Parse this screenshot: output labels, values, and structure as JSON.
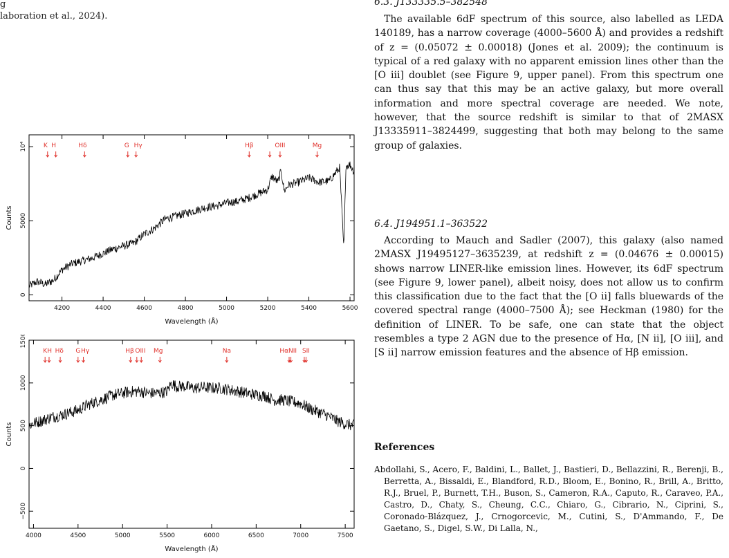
{
  "left_caption": {
    "line1": "g",
    "line2": "laboration et al., 2024)."
  },
  "right_top_header": "6.3.  J133335.5–382548",
  "section_6_3_paragraph": "The available 6dF spectrum of this source, also labelled as LEDA 140189, has a narrow coverage (4000–5600 Å) and provides a redshift of z = (0.05072 ± 0.00018) (Jones et al. 2009); the continuum is typical of a red galaxy with no apparent emission lines other than the [O iii] doublet (see Figure 9, upper panel). From this spectrum one can thus say that this may be an active galaxy, but more overall information and more spectral coverage are needed. We note, however, that the source redshift is similar to that of 2MASX J13335911–3824499, suggesting that both may belong to the same group of galaxies.",
  "section_6_4_title": "6.4.  J194951.1–363522",
  "section_6_4_paragraph": "According to Mauch and Sadler (2007), this galaxy (also named 2MASX J19495127–3635239, at redshift z = (0.04676 ± 0.00015) shows narrow LINER-like emission lines. However, its 6dF spectrum (see Figure 9, lower panel), albeit noisy, does not allow us to confirm this classification due to the fact that the [O ii] falls bluewards of the covered spectral range (4000–7500 Å); see Heckman (1980) for the definition of LINER. To be safe, one can state that the object resembles a type 2 AGN due to the presence of Hα, [N ii], [O iii], and [S ii] narrow emission features and the absence of Hβ emission.",
  "references_title": "References",
  "references_text": "Abdollahi, S., Acero, F., Baldini, L., Ballet, J., Bastieri, D., Bellazzini, R., Berenji, B., Berretta, A., Bissaldi, E., Blandford, R.D., Bloom, E., Bonino, R., Brill, A., Britto, R.J., Bruel, P., Burnett, T.H., Buson, S., Cameron, R.A., Caputo, R., Caraveo, P.A., Castro, D., Chaty, S., Cheung, C.C., Chiaro, G., Cibrario, N., Ciprini, S., Coronado-Blázquez, J., Crnogorcevic, M., Cutini, S., D'Ammando, F., De Gaetano, S., Digel, S.W., Di Lalla, N.,",
  "colors": {
    "line_marker": "#e0302a",
    "spectrum": "#000000"
  },
  "chart_data": [
    {
      "type": "line",
      "title": "",
      "xlabel": "Wavelength (Å)",
      "ylabel": "Counts",
      "xlim": [
        4040,
        5620
      ],
      "ylim": [
        -400,
        10800
      ],
      "x_ticks": [
        4200,
        4400,
        4600,
        4800,
        5000,
        5200,
        5400,
        5600
      ],
      "x_tick_labels": [
        "4200",
        "4400",
        "4600",
        "4800",
        "5000",
        "5200",
        "5400",
        "5600"
      ],
      "y_ticks": [
        0,
        5000,
        10000
      ],
      "y_tick_labels": [
        "0",
        "5000",
        "10⁴"
      ],
      "line_labels": [
        {
          "text": "K",
          "x": 4120,
          "arrows": [
            4130
          ]
        },
        {
          "text": "H",
          "x": 4160,
          "arrows": [
            4170
          ]
        },
        {
          "text": "Hδ",
          "x": 4300,
          "arrows": [
            4310
          ]
        },
        {
          "text": "G",
          "x": 4515,
          "arrows": [
            4520
          ]
        },
        {
          "text": "Hγ",
          "x": 4570,
          "arrows": [
            4560
          ]
        },
        {
          "text": "Hβ",
          "x": 5110,
          "arrows": [
            5110
          ]
        },
        {
          "text": "OIII",
          "x": 5260,
          "arrows": [
            5210,
            5260
          ]
        },
        {
          "text": "Mg",
          "x": 5440,
          "arrows": [
            5440
          ]
        }
      ],
      "series": [
        {
          "x": [
            4040,
            4080,
            4120,
            4160,
            4200,
            4250,
            4300,
            4350,
            4400,
            4450,
            4500,
            4550,
            4600,
            4650,
            4700,
            4750,
            4800,
            4850,
            4900,
            4950,
            5000,
            5050,
            5100,
            5150,
            5200,
            5220,
            5250,
            5265,
            5280,
            5300,
            5350,
            5400,
            5450,
            5500,
            5550,
            5570,
            5580,
            5600,
            5620
          ],
          "y": [
            600,
            900,
            700,
            1000,
            1700,
            2100,
            2300,
            2500,
            2800,
            3100,
            3300,
            3500,
            4100,
            4500,
            5100,
            5300,
            5500,
            5700,
            5900,
            6000,
            6200,
            6300,
            6500,
            6800,
            7100,
            8000,
            7600,
            8400,
            7000,
            7400,
            7600,
            7900,
            7600,
            7700,
            8600,
            3000,
            8700,
            8800,
            8300
          ]
        }
      ]
    },
    {
      "type": "line",
      "title": "",
      "xlabel": "Wavelength (Å)",
      "ylabel": "Counts",
      "xlim": [
        3950,
        7600
      ],
      "ylim": [
        -700,
        1500
      ],
      "x_ticks": [
        4000,
        4500,
        5000,
        5500,
        6000,
        6500,
        7000,
        7500
      ],
      "x_tick_labels": [
        "4000",
        "4500",
        "5000",
        "5500",
        "6000",
        "6500",
        "7000",
        "7500"
      ],
      "y_ticks": [
        -500,
        0,
        500,
        1000,
        1500
      ],
      "y_tick_labels": [
        "−500",
        "0",
        "500",
        "1000",
        "1500"
      ],
      "line_labels": [
        {
          "text": "K",
          "x": 4130,
          "arrows": [
            4130
          ]
        },
        {
          "text": "H",
          "x": 4180,
          "arrows": [
            4175
          ]
        },
        {
          "text": "Hδ",
          "x": 4290,
          "arrows": [
            4300
          ]
        },
        {
          "text": "G",
          "x": 4500,
          "arrows": [
            4500
          ]
        },
        {
          "text": "Hγ",
          "x": 4580,
          "arrows": [
            4560
          ]
        },
        {
          "text": "Hβ",
          "x": 5080,
          "arrows": [
            5090
          ]
        },
        {
          "text": "OIII",
          "x": 5200,
          "arrows": [
            5160,
            5210
          ]
        },
        {
          "text": "Mg",
          "x": 5400,
          "arrows": [
            5420
          ]
        },
        {
          "text": "Na",
          "x": 6170,
          "arrows": [
            6170
          ]
        },
        {
          "text": "HαNII",
          "x": 6860,
          "arrows": [
            6870,
            6890
          ]
        },
        {
          "text": "SII",
          "x": 7060,
          "arrows": [
            7040,
            7060
          ]
        }
      ],
      "series": [
        {
          "x": [
            3950,
            4000,
            4100,
            4200,
            4300,
            4400,
            4500,
            4600,
            4700,
            4800,
            4900,
            5000,
            5100,
            5200,
            5300,
            5400,
            5500,
            5550,
            5600,
            5700,
            5800,
            5900,
            6000,
            6100,
            6200,
            6300,
            6400,
            6500,
            6600,
            6700,
            6800,
            6900,
            7000,
            7100,
            7200,
            7300,
            7400,
            7500,
            7600
          ],
          "y": [
            500,
            530,
            560,
            600,
            620,
            650,
            680,
            740,
            780,
            820,
            860,
            880,
            900,
            900,
            880,
            880,
            900,
            1000,
            960,
            960,
            940,
            950,
            940,
            940,
            920,
            900,
            880,
            860,
            850,
            800,
            800,
            780,
            760,
            700,
            660,
            620,
            560,
            520,
            500
          ]
        }
      ]
    }
  ]
}
